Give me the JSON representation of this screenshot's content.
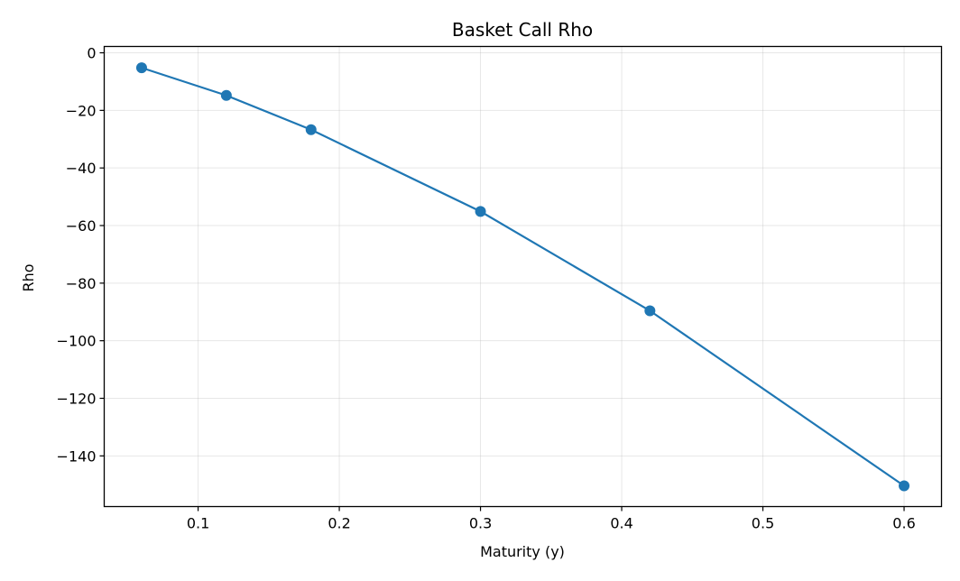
{
  "chart_data": {
    "type": "line",
    "title": "Basket Call Rho",
    "xlabel": "Maturity (y)",
    "ylabel": "Rho",
    "xlim": [
      0.0335,
      0.6265
    ],
    "ylim": [
      -157.6,
      2.2
    ],
    "xticks": [
      0.1,
      0.2,
      0.3,
      0.4,
      0.5,
      0.6
    ],
    "xtick_labels": [
      "0.1",
      "0.2",
      "0.3",
      "0.4",
      "0.5",
      "0.6"
    ],
    "yticks": [
      0,
      -20,
      -40,
      -60,
      -80,
      -100,
      -120,
      -140
    ],
    "ytick_labels": [
      "0",
      "−20",
      "−40",
      "−60",
      "−80",
      "−100",
      "−120",
      "−140"
    ],
    "grid": true,
    "legend": "none",
    "series": [
      {
        "color": "#1f77b4",
        "marker": "circle",
        "x": [
          0.06,
          0.12,
          0.18,
          0.3,
          0.42,
          0.6
        ],
        "y": [
          -5.2,
          -14.8,
          -26.7,
          -55.1,
          -89.6,
          -150.4
        ]
      }
    ]
  }
}
